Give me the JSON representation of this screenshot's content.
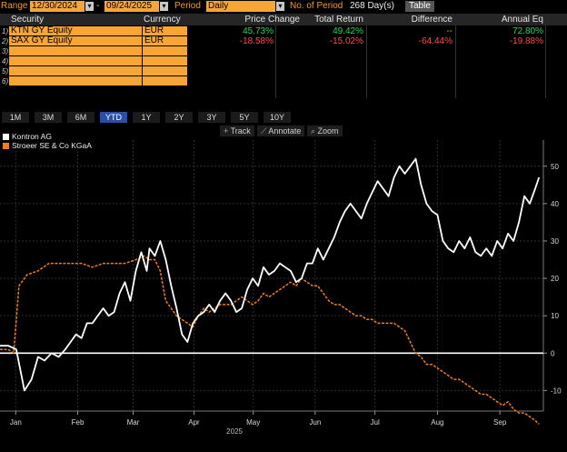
{
  "header": {
    "range_label": "Range",
    "start_date": "12/30/2024",
    "end_date": "09/24/2025",
    "period_label": "Period",
    "period_value": "Daily",
    "periods_label": "No. of Period",
    "periods_value": "268 Day(s)",
    "table_button": "Table"
  },
  "table": {
    "columns": [
      "Security",
      "Currency",
      "Price Change",
      "Total Return",
      "Difference",
      "Annual Eq"
    ],
    "rows": [
      {
        "num": "1)",
        "security": "KTN GY Equity",
        "currency": "EUR",
        "price_change": "45.73%",
        "total_return": "49.42%",
        "difference": "--",
        "annual_eq": "72.80%"
      },
      {
        "num": "2)",
        "security": "SAX GY Equity",
        "currency": "EUR",
        "price_change": "-18.58%",
        "total_return": "-15.02%",
        "difference": "-64.44%",
        "annual_eq": "-19.88%"
      },
      {
        "num": "3)"
      },
      {
        "num": "4)"
      },
      {
        "num": "5)"
      },
      {
        "num": "6)"
      }
    ]
  },
  "tabs": [
    "1M",
    "3M",
    "6M",
    "YTD",
    "1Y",
    "2Y",
    "3Y",
    "5Y",
    "10Y"
  ],
  "active_tab": "YTD",
  "chart_tools": [
    "Track",
    "Annotate",
    "Zoom"
  ],
  "colors": {
    "kontron": "#ffffff",
    "stroeer": "#f07d1a",
    "accent": "#f7a535",
    "zero_line": "#ffffff"
  },
  "chart_data": {
    "type": "line",
    "title": "",
    "xlabel": "2025",
    "ylabel": "",
    "ylim": [
      -15.5,
      57
    ],
    "yticks": [
      -10,
      0,
      10,
      20,
      30,
      40,
      50
    ],
    "xticks": [
      {
        "label": "Jan",
        "t": 0.09
      },
      {
        "label": "Feb",
        "t": 1.23
      },
      {
        "label": "Mar",
        "t": 2.25
      },
      {
        "label": "Apr",
        "t": 3.37
      },
      {
        "label": "May",
        "t": 4.46
      },
      {
        "label": "Jun",
        "t": 5.6
      },
      {
        "label": "Jul",
        "t": 6.7
      },
      {
        "label": "Aug",
        "t": 7.85
      },
      {
        "label": "Sep",
        "t": 9.0
      }
    ],
    "xlim": [
      -0.2,
      9.8
    ],
    "grid": true,
    "legend_position": "top-left",
    "series": [
      {
        "name": "Kontron AG",
        "style": "solid",
        "t": [
          -0.2,
          -0.05,
          0.1,
          0.25,
          0.38,
          0.5,
          0.62,
          0.75,
          0.88,
          1.0,
          1.1,
          1.2,
          1.3,
          1.4,
          1.5,
          1.6,
          1.7,
          1.8,
          1.9,
          2.0,
          2.1,
          2.2,
          2.3,
          2.4,
          2.5,
          2.55,
          2.65,
          2.75,
          2.85,
          2.95,
          3.05,
          3.15,
          3.25,
          3.35,
          3.45,
          3.55,
          3.65,
          3.75,
          3.85,
          3.95,
          4.05,
          4.15,
          4.25,
          4.35,
          4.45,
          4.55,
          4.65,
          4.75,
          4.85,
          4.95,
          5.05,
          5.15,
          5.25,
          5.35,
          5.45,
          5.55,
          5.65,
          5.75,
          5.85,
          5.95,
          6.05,
          6.15,
          6.25,
          6.35,
          6.45,
          6.55,
          6.65,
          6.75,
          6.85,
          6.95,
          7.05,
          7.15,
          7.25,
          7.35,
          7.45,
          7.55,
          7.65,
          7.75,
          7.85,
          7.95,
          8.05,
          8.15,
          8.25,
          8.35,
          8.45,
          8.55,
          8.65,
          8.75,
          8.85,
          8.95,
          9.05,
          9.15,
          9.25,
          9.35,
          9.45,
          9.55,
          9.65,
          9.72
        ],
        "values": [
          2,
          2,
          1,
          -10,
          -7,
          -1,
          -2,
          0,
          -1,
          1,
          3,
          5,
          4,
          8,
          8,
          10,
          12,
          10,
          11,
          16,
          19,
          14,
          22,
          27,
          22,
          28,
          26,
          30,
          25,
          18,
          12,
          5,
          3,
          8,
          10,
          11,
          13,
          11,
          14,
          16,
          14,
          11,
          12,
          17,
          20,
          18,
          23,
          21,
          22,
          24,
          23,
          22,
          19,
          20,
          24,
          24,
          28,
          25,
          28,
          31,
          35,
          38,
          40,
          38,
          36,
          40,
          43,
          46,
          44,
          42,
          47,
          50,
          48,
          50,
          52,
          45,
          40,
          38,
          37,
          30,
          28,
          27,
          30,
          28,
          31,
          27,
          26,
          28,
          26,
          30,
          28,
          32,
          30,
          35,
          42,
          40,
          44,
          47
        ]
      },
      {
        "name": "Stroeer SE & Co KGaA",
        "style": "dashed",
        "t": [
          -0.2,
          -0.05,
          0.05,
          0.15,
          0.3,
          0.5,
          0.7,
          0.9,
          1.1,
          1.3,
          1.5,
          1.7,
          1.9,
          2.1,
          2.3,
          2.45,
          2.55,
          2.65,
          2.75,
          2.85,
          2.95,
          3.05,
          3.15,
          3.25,
          3.35,
          3.45,
          3.55,
          3.65,
          3.75,
          3.85,
          3.95,
          4.05,
          4.15,
          4.25,
          4.35,
          4.45,
          4.55,
          4.65,
          4.75,
          4.85,
          4.95,
          5.05,
          5.15,
          5.25,
          5.35,
          5.45,
          5.55,
          5.65,
          5.75,
          5.85,
          5.95,
          6.05,
          6.15,
          6.25,
          6.35,
          6.45,
          6.55,
          6.65,
          6.75,
          6.85,
          6.95,
          7.05,
          7.15,
          7.25,
          7.35,
          7.45,
          7.55,
          7.65,
          7.75,
          7.85,
          7.95,
          8.05,
          8.15,
          8.25,
          8.35,
          8.45,
          8.55,
          8.65,
          8.75,
          8.85,
          8.95,
          9.05,
          9.15,
          9.25,
          9.35,
          9.45,
          9.55,
          9.65,
          9.72
        ],
        "values": [
          1,
          1,
          0,
          18,
          21,
          22,
          24,
          24,
          24,
          24,
          23,
          24,
          24,
          24,
          25,
          26,
          25,
          25,
          22,
          14,
          12,
          10,
          9,
          8,
          7,
          10,
          12,
          11,
          12,
          13,
          13,
          13,
          14,
          15,
          14,
          13,
          14,
          16,
          15,
          16,
          17,
          18,
          19,
          18,
          20,
          19,
          18,
          18,
          16,
          14,
          13,
          13,
          12,
          11,
          10,
          10,
          9,
          9,
          8,
          8,
          8,
          8,
          7,
          6,
          3,
          0,
          -1,
          -3,
          -3,
          -4,
          -5,
          -6,
          -7,
          -7,
          -8,
          -9,
          -10,
          -11,
          -11,
          -12,
          -13,
          -14,
          -13,
          -15,
          -16,
          -16,
          -17,
          -18,
          -19
        ]
      }
    ]
  }
}
